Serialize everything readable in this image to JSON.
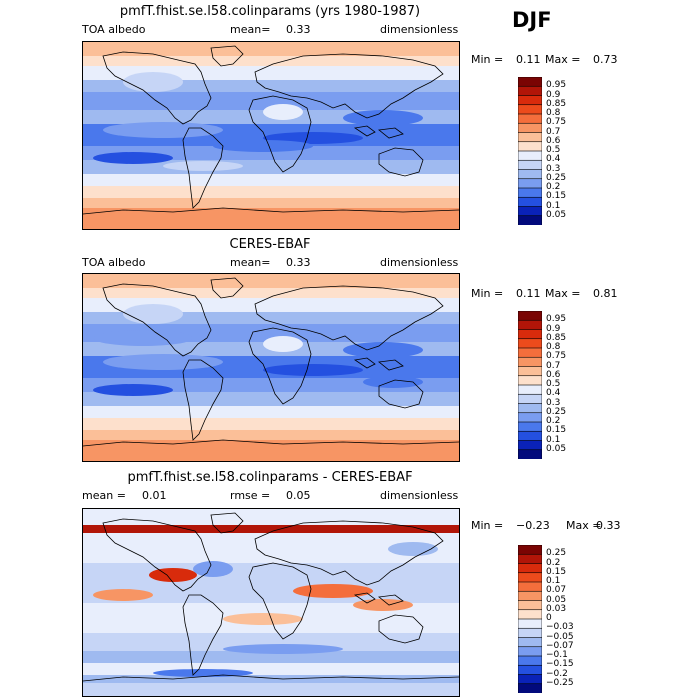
{
  "season": "DJF",
  "panels": [
    {
      "id": "model",
      "title": "pmfT.fhist.se.l58.colinparams (yrs 1980-1987)",
      "left_label": "TOA albedo",
      "center_label": "mean=",
      "center_value": "0.33",
      "right_label": "dimensionless",
      "min_label": "Min =",
      "min_value": "0.11",
      "max_label": "Max =",
      "max_value": "0.73"
    },
    {
      "id": "obs",
      "title": "CERES-EBAF",
      "left_label": "TOA albedo",
      "center_label": "mean=",
      "center_value": "0.33",
      "right_label": "dimensionless",
      "min_label": "Min =",
      "min_value": "0.11",
      "max_label": "Max =",
      "max_value": "0.81"
    },
    {
      "id": "diff",
      "title": "pmfT.fhist.se.l58.colinparams - CERES-EBAF",
      "left_label": "mean =",
      "left_value": "0.01",
      "center_label": "rmse =",
      "center_value": "0.05",
      "right_label": "dimensionless",
      "min_label": "Min =",
      "min_value": "−0.23",
      "max_label": "Max =",
      "max_value": "0.33"
    }
  ],
  "chart_data": [
    {
      "type": "heatmap",
      "title": "pmfT.fhist.se.l58.colinparams (yrs 1980-1987)",
      "variable": "TOA albedo",
      "units": "dimensionless",
      "mean": 0.33,
      "min": 0.11,
      "max": 0.73,
      "colorbar_levels": [
        "0.95",
        "0.9",
        "0.85",
        "0.8",
        "0.75",
        "0.7",
        "0.6",
        "0.5",
        "0.4",
        "0.3",
        "0.25",
        "0.2",
        "0.15",
        "0.1",
        "0.05"
      ],
      "colorbar_colors": [
        "#7a0403",
        "#b11508",
        "#d82b0c",
        "#ec4b1c",
        "#f46e3c",
        "#f79564",
        "#fbbf98",
        "#fde0cc",
        "#e8eefc",
        "#c6d5f6",
        "#9fbaf0",
        "#7a9df0",
        "#4a78ec",
        "#2450e0",
        "#0a22b8",
        "#020a7c"
      ]
    },
    {
      "type": "heatmap",
      "title": "CERES-EBAF",
      "variable": "TOA albedo",
      "units": "dimensionless",
      "mean": 0.33,
      "min": 0.11,
      "max": 0.81,
      "colorbar_levels": [
        "0.95",
        "0.9",
        "0.85",
        "0.8",
        "0.75",
        "0.7",
        "0.6",
        "0.5",
        "0.4",
        "0.3",
        "0.25",
        "0.2",
        "0.15",
        "0.1",
        "0.05"
      ],
      "colorbar_colors": [
        "#7a0403",
        "#b11508",
        "#d82b0c",
        "#ec4b1c",
        "#f46e3c",
        "#f79564",
        "#fbbf98",
        "#fde0cc",
        "#e8eefc",
        "#c6d5f6",
        "#9fbaf0",
        "#7a9df0",
        "#4a78ec",
        "#2450e0",
        "#0a22b8",
        "#020a7c"
      ]
    },
    {
      "type": "heatmap",
      "title": "pmfT.fhist.se.l58.colinparams - CERES-EBAF",
      "units": "dimensionless",
      "mean": 0.01,
      "rmse": 0.05,
      "min": -0.23,
      "max": 0.33,
      "colorbar_levels": [
        "0.25",
        "0.2",
        "0.15",
        "0.1",
        "0.07",
        "0.05",
        "0.03",
        "0",
        "−0.03",
        "−0.05",
        "−0.07",
        "−0.1",
        "−0.15",
        "−0.2",
        "−0.25"
      ],
      "colorbar_colors": [
        "#7a0403",
        "#b11508",
        "#d82b0c",
        "#ec4b1c",
        "#f46e3c",
        "#f79564",
        "#fbbf98",
        "#fde0cc",
        "#e8eefc",
        "#c6d5f6",
        "#9fbaf0",
        "#7a9df0",
        "#4a78ec",
        "#2450e0",
        "#0a22b8",
        "#020a7c"
      ]
    }
  ]
}
